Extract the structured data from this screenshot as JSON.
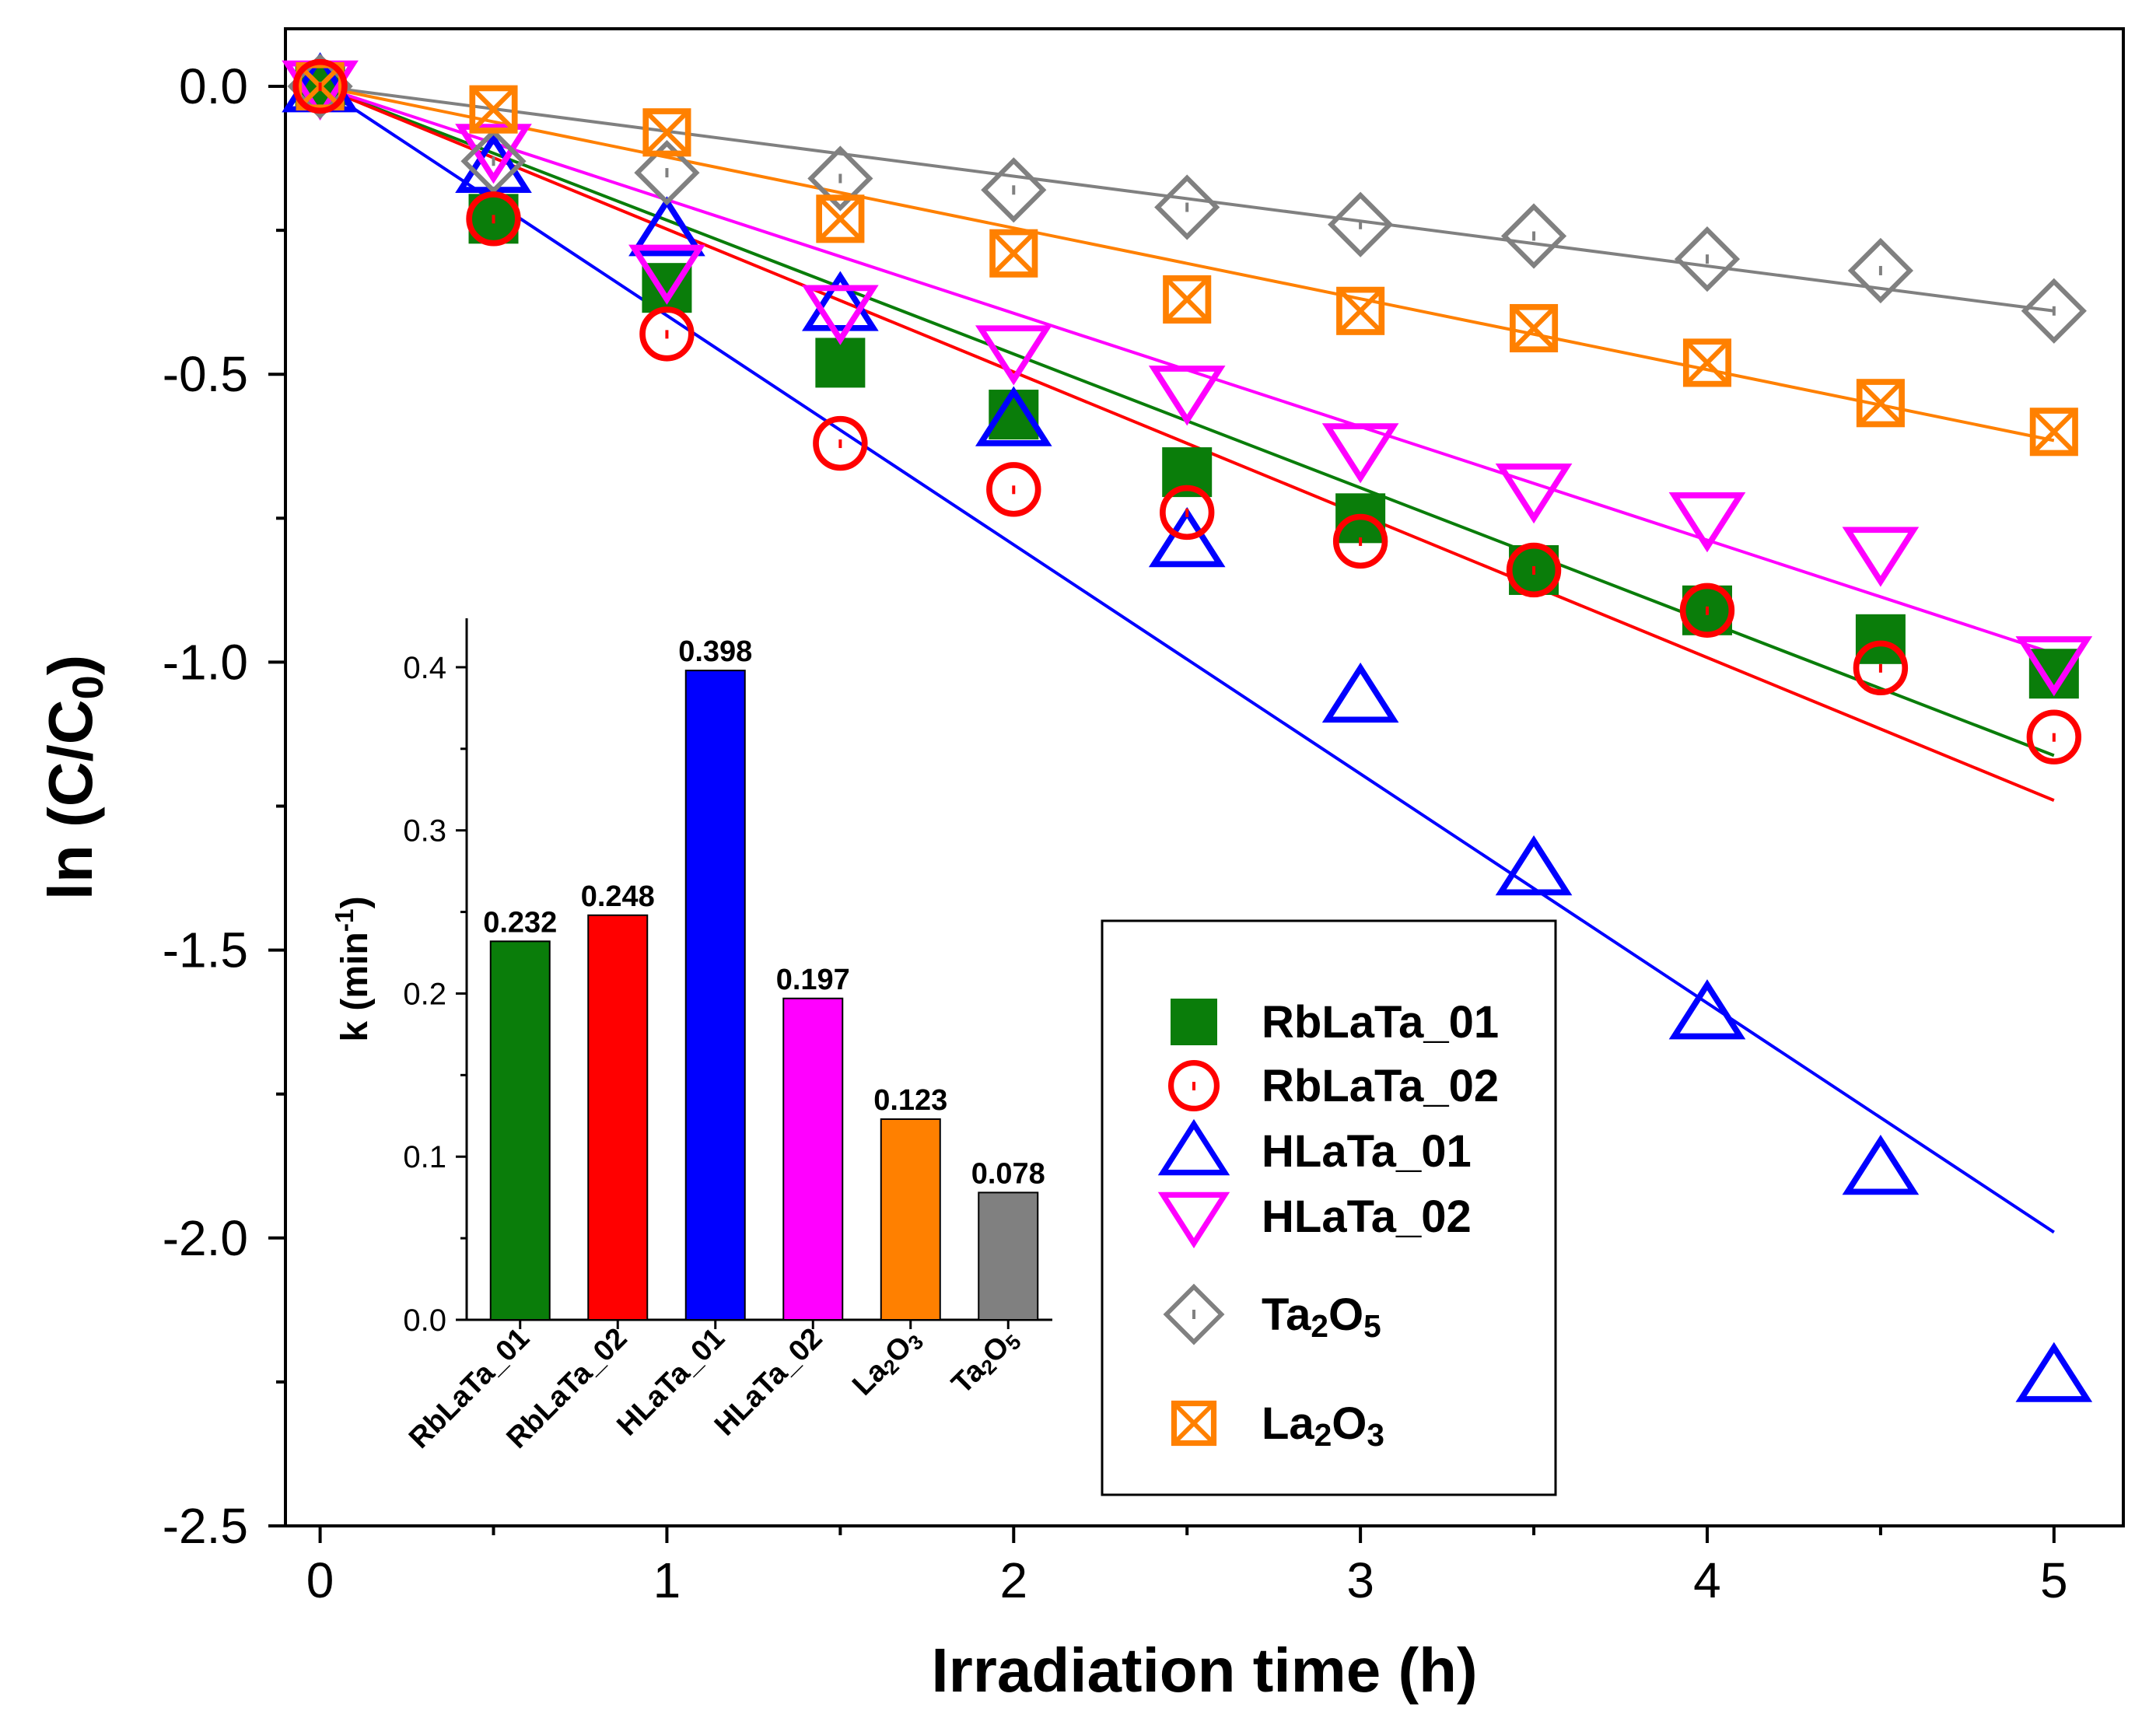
{
  "chart_data": [
    {
      "type": "scatter",
      "xlabel": "Irradiation time (h)",
      "ylabel": {
        "main": "ln (C/C",
        "sub": "0",
        "close": ")"
      },
      "xlim": [
        -0.1,
        5.2
      ],
      "ylim": [
        -2.5,
        0.1
      ],
      "xticks": [
        0,
        1,
        2,
        3,
        4,
        5
      ],
      "xtick_labels": [
        "0",
        "1",
        "2",
        "3",
        "4",
        "5"
      ],
      "yticks": [
        0.0,
        -0.5,
        -1.0,
        -1.5,
        -2.0,
        -2.5
      ],
      "ytick_labels": [
        "0.0",
        "-0.5",
        "-1.0",
        "-1.5",
        "-2.0",
        "-2.5"
      ],
      "x": [
        0,
        0.5,
        1,
        1.5,
        2,
        2.5,
        3,
        3.5,
        4,
        4.5,
        5
      ],
      "series": [
        {
          "name": "RbLaTa_01",
          "label_parts": [
            [
              "RbLaTa_01",
              ""
            ]
          ],
          "color": "#0a7d0a",
          "marker": "square",
          "values": [
            0,
            -0.23,
            -0.35,
            -0.48,
            -0.57,
            -0.67,
            -0.75,
            -0.84,
            -0.91,
            -0.96,
            -1.02
          ],
          "fit": [
            0,
            -1.162
          ]
        },
        {
          "name": "RbLaTa_02",
          "label_parts": [
            [
              "RbLaTa_02",
              ""
            ]
          ],
          "color": "#ff0000",
          "marker": "circle",
          "values": [
            0,
            -0.23,
            -0.43,
            -0.62,
            -0.7,
            -0.74,
            -0.79,
            -0.84,
            -0.91,
            -1.01,
            -1.13
          ],
          "fit": [
            0,
            -1.24
          ]
        },
        {
          "name": "HLaTa_01",
          "label_parts": [
            [
              "HLaTa_01",
              ""
            ]
          ],
          "color": "#0000ff",
          "marker": "triangle-up",
          "values": [
            0,
            -0.14,
            -0.25,
            -0.38,
            -0.58,
            -0.79,
            -1.06,
            -1.36,
            -1.61,
            -1.88,
            -2.24
          ],
          "fit": [
            0,
            -1.99
          ]
        },
        {
          "name": "HLaTa_02",
          "label_parts": [
            [
              "HLaTa_02",
              ""
            ]
          ],
          "color": "#ff00ff",
          "marker": "triangle-down",
          "values": [
            0,
            -0.11,
            -0.32,
            -0.39,
            -0.46,
            -0.53,
            -0.63,
            -0.7,
            -0.75,
            -0.81,
            -1.0
          ],
          "fit": [
            0,
            -0.985
          ]
        },
        {
          "name": "Ta2O5",
          "label_parts": [
            [
              "Ta",
              ""
            ],
            [
              "2",
              "sub"
            ],
            [
              "O",
              ""
            ],
            [
              "5",
              "sub"
            ]
          ],
          "color": "#808080",
          "marker": "diamond",
          "values": [
            0,
            -0.13,
            -0.15,
            -0.16,
            -0.18,
            -0.21,
            -0.24,
            -0.26,
            -0.3,
            -0.32,
            -0.39
          ],
          "fit": [
            0,
            -0.39
          ]
        },
        {
          "name": "La2O3",
          "label_parts": [
            [
              "La",
              ""
            ],
            [
              "2",
              "sub"
            ],
            [
              "O",
              ""
            ],
            [
              "3",
              "sub"
            ]
          ],
          "color": "#ff8000",
          "marker": "square-x",
          "values": [
            0,
            -0.04,
            -0.08,
            -0.23,
            -0.29,
            -0.37,
            -0.39,
            -0.42,
            -0.48,
            -0.55,
            -0.6
          ],
          "fit": [
            0,
            -0.615
          ]
        }
      ]
    },
    {
      "type": "bar",
      "title": "inset",
      "ylabel": {
        "main": "k (min",
        "sup": "-1",
        "close": ")"
      },
      "ylim": [
        0,
        0.43
      ],
      "yticks": [
        0.0,
        0.1,
        0.2,
        0.3,
        0.4
      ],
      "ytick_labels": [
        "0.0",
        "0.1",
        "0.2",
        "0.3",
        "0.4"
      ],
      "categories": [
        {
          "parts": [
            [
              "RbLaTa_01",
              ""
            ]
          ]
        },
        {
          "parts": [
            [
              "RbLaTa_02",
              ""
            ]
          ]
        },
        {
          "parts": [
            [
              "HLaTa_01",
              ""
            ]
          ]
        },
        {
          "parts": [
            [
              "HLaTa_02",
              ""
            ]
          ]
        },
        {
          "parts": [
            [
              "La",
              ""
            ],
            [
              "2",
              "sub"
            ],
            [
              "O",
              ""
            ],
            [
              "3",
              "sub"
            ]
          ]
        },
        {
          "parts": [
            [
              "Ta",
              ""
            ],
            [
              "2",
              "sub"
            ],
            [
              "O",
              ""
            ],
            [
              "5",
              "sub"
            ]
          ]
        }
      ],
      "values": [
        0.232,
        0.248,
        0.398,
        0.197,
        0.123,
        0.078
      ],
      "value_labels": [
        "0.232",
        "0.248",
        "0.398",
        "0.197",
        "0.123",
        "0.078"
      ],
      "colors": [
        "#0a7d0a",
        "#ff0000",
        "#0000ff",
        "#ff00ff",
        "#ff8000",
        "#808080"
      ]
    }
  ]
}
